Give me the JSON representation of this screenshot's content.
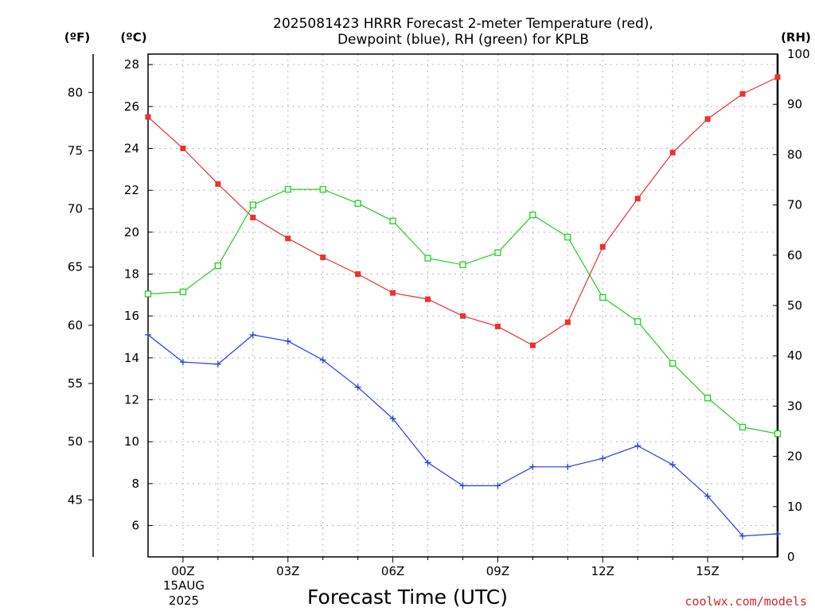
{
  "chart_data": {
    "type": "line",
    "title": "2025081423 HRRR Forecast 2-meter Temperature (red),",
    "subtitle": "Dewpoint (blue), RH (green) for KPLB",
    "xlabel": "Forecast Time (UTC)",
    "credit": "coolwx.com/models",
    "axis_units": {
      "fahrenheit": "(ºF)",
      "celsius": "(ºC)",
      "rh": "(RH)"
    },
    "x_tick_labels": [
      "00Z",
      "03Z",
      "06Z",
      "09Z",
      "12Z",
      "15Z"
    ],
    "x_date_label": [
      "15AUG",
      "2025"
    ],
    "x": [
      "2025-08-14 23Z",
      "2025-08-15 00Z",
      "2025-08-15 01Z",
      "2025-08-15 02Z",
      "2025-08-15 03Z",
      "2025-08-15 04Z",
      "2025-08-15 05Z",
      "2025-08-15 06Z",
      "2025-08-15 07Z",
      "2025-08-15 08Z",
      "2025-08-15 09Z",
      "2025-08-15 10Z",
      "2025-08-15 11Z",
      "2025-08-15 12Z",
      "2025-08-15 13Z",
      "2025-08-15 14Z",
      "2025-08-15 15Z",
      "2025-08-15 16Z",
      "2025-08-15 17Z"
    ],
    "xlim": [
      "2025-08-14 23Z",
      "2025-08-15 17Z"
    ],
    "y_celsius_ticks": [
      6,
      8,
      10,
      12,
      14,
      16,
      18,
      20,
      22,
      24,
      26,
      28
    ],
    "y_fahrenheit_ticks": [
      45,
      50,
      55,
      60,
      65,
      70,
      75,
      80
    ],
    "y_rh_ticks": [
      0,
      10,
      20,
      30,
      40,
      50,
      60,
      70,
      80,
      90,
      100
    ],
    "ylim_celsius": [
      4.5,
      28.5
    ],
    "ylim_fahrenheit": [
      40.1,
      83.3
    ],
    "ylim_rh": [
      0,
      100
    ],
    "grid": true,
    "series": [
      {
        "name": "Temperature",
        "axis": "celsius",
        "color": "#ee3030",
        "marker": "filled-square",
        "values": [
          25.5,
          24.0,
          22.3,
          20.7,
          19.7,
          18.8,
          18.0,
          17.1,
          16.8,
          16.0,
          15.5,
          14.6,
          15.7,
          19.3,
          21.6,
          23.8,
          25.4,
          26.6,
          27.4
        ]
      },
      {
        "name": "Dewpoint",
        "axis": "celsius",
        "color": "#2040e8",
        "marker": "plus",
        "values": [
          15.1,
          13.8,
          13.7,
          15.1,
          14.8,
          13.9,
          12.6,
          11.1,
          9.0,
          7.9,
          7.9,
          8.8,
          8.8,
          9.2,
          9.8,
          8.9,
          7.4,
          5.5,
          5.6
        ]
      },
      {
        "name": "RH",
        "axis": "rh",
        "color": "#20d020",
        "marker": "open-square",
        "values": [
          52.3,
          52.7,
          57.9,
          70.0,
          73.1,
          73.1,
          70.3,
          66.8,
          59.4,
          58.1,
          60.5,
          68.0,
          63.6,
          51.6,
          46.8,
          38.5,
          31.6,
          25.8,
          24.5
        ]
      }
    ]
  }
}
